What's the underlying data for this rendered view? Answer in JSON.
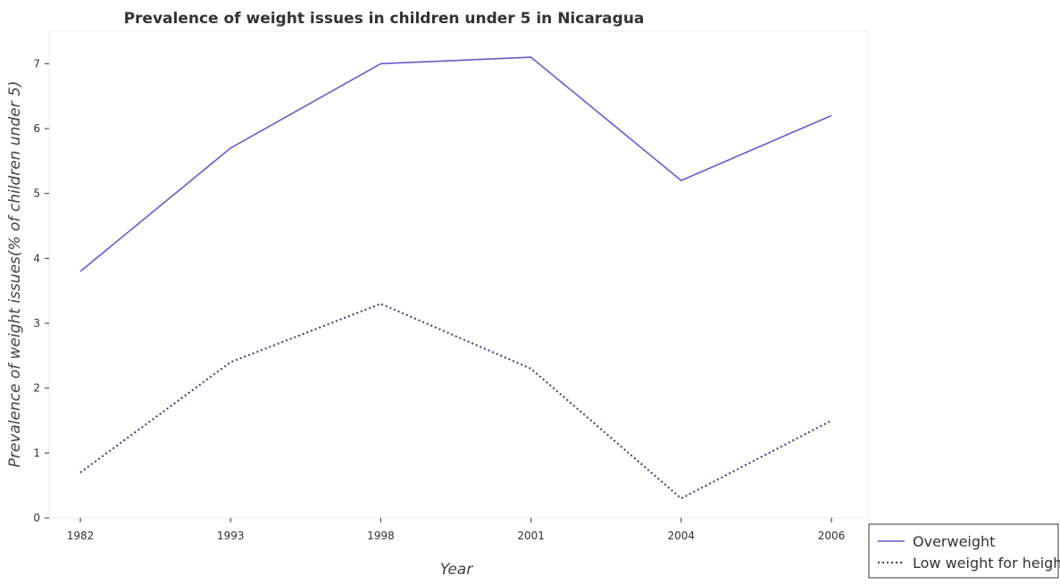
{
  "chart_data": {
    "type": "line",
    "title": "Prevalence of weight issues in children under 5 in Nicaragua",
    "xlabel": "Year",
    "ylabel": "Prevalence of weight issues(% of children under 5)",
    "categories": [
      "1982",
      "1993",
      "1998",
      "2001",
      "2004",
      "2006"
    ],
    "y_ticks": [
      "0",
      "1",
      "2",
      "3",
      "4",
      "5",
      "6",
      "7"
    ],
    "ylim": [
      0,
      7.5
    ],
    "grid": false,
    "legend_position": "bottom-right",
    "series": [
      {
        "name": "Overweight",
        "values": [
          3.8,
          5.7,
          7.0,
          7.1,
          5.2,
          6.2
        ],
        "color": "#6a5acd",
        "line_style": "solid"
      },
      {
        "name": "Low weight for height",
        "values": [
          0.7,
          2.4,
          3.3,
          2.3,
          0.3,
          1.5
        ],
        "color": "#3d3a7a",
        "line_style": "dotted"
      }
    ]
  }
}
